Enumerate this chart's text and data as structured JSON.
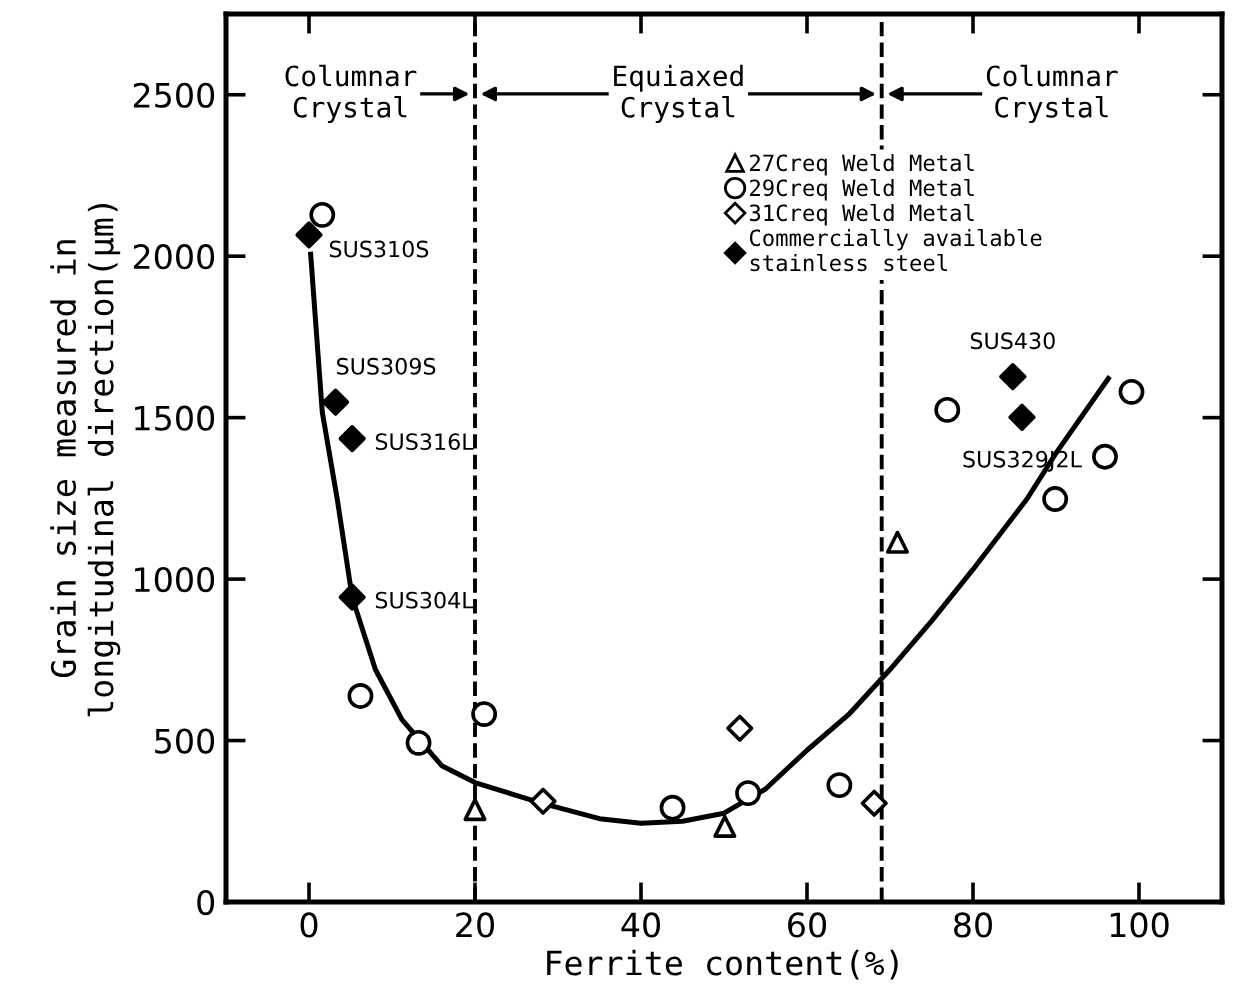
{
  "chart_data": {
    "type": "scatter",
    "xlabel": "Ferrite content(%)",
    "ylabel": "Grain size measured in\nlongitudinal direction(μm)",
    "xlim": [
      -10,
      110
    ],
    "xticks": [
      0,
      20,
      40,
      60,
      80,
      100
    ],
    "ylim": [
      0,
      2750
    ],
    "yticks": [
      0,
      500,
      1000,
      1500,
      2000,
      2500
    ],
    "grid": false,
    "legend": "top",
    "series": [
      {
        "name": "27Creq Weld Metal",
        "color": "#ffffff",
        "marker": "triangle",
        "x": [
          20.0,
          50.1,
          70.9
        ],
        "values": [
          286,
          234,
          1114
        ]
      },
      {
        "name": "29Creq Weld Metal",
        "color": "#ffffff",
        "marker": "circle",
        "x": [
          1.6,
          6.2,
          13.2,
          21.1,
          43.8,
          52.9,
          63.9,
          76.9,
          89.9,
          95.9,
          99.1
        ],
        "values": [
          2128,
          638,
          493,
          582,
          292,
          337,
          362,
          1524,
          1248,
          1379,
          1580
        ]
      },
      {
        "name": "31Creq Weld Metal",
        "color": "#ffffff",
        "marker": "diamond",
        "x": [
          28.2,
          51.9,
          68.1
        ],
        "values": [
          312,
          538,
          306
        ]
      },
      {
        "name": "Commercially available\nstainless steel",
        "color": "#000000",
        "marker": "diamond",
        "x": [
          0,
          3.2,
          5.2,
          5.2,
          84.8,
          85.9
        ],
        "values": [
          2066,
          1548,
          1435,
          944,
          1627,
          1501
        ]
      },
      {
        "type": "line",
        "color": "#000000",
        "marker": "none",
        "line_style": "solid",
        "x": [
          0.2,
          1.6,
          3.4,
          5.2,
          8,
          11.2,
          16,
          20,
          28,
          35,
          40,
          45,
          50,
          55,
          60,
          65,
          70,
          75,
          80,
          86.5,
          90,
          96.3
        ],
        "values": [
          2006,
          1517,
          1248,
          944,
          720,
          565,
          422,
          370,
          306,
          258,
          244,
          250,
          275,
          350,
          470,
          580,
          720,
          870,
          1030,
          1248,
          1390,
          1621
        ]
      }
    ],
    "ref_lines": [
      {
        "axis": "x",
        "value": 20,
        "line_style": "dashed",
        "color": "#000000"
      },
      {
        "axis": "x",
        "value": 69,
        "line_style": "dashed",
        "color": "#000000"
      }
    ],
    "annotations": [
      "Columnar\nCrystal",
      "Equiaxed\nCrystal",
      "Columnar\nCrystal",
      {
        "text": "SUS310S",
        "x": 0,
        "y": 2066
      },
      {
        "text": "SUS309S",
        "x": 3.2,
        "y": 1548
      },
      {
        "text": "SUS316L",
        "x": 5.2,
        "y": 1435
      },
      {
        "text": "SUS304L",
        "x": 5.2,
        "y": 944
      },
      {
        "text": "SUS430",
        "x": 84.8,
        "y": 1627
      },
      {
        "text": "SUS329J2L",
        "x": 85.9,
        "y": 1501
      }
    ]
  }
}
